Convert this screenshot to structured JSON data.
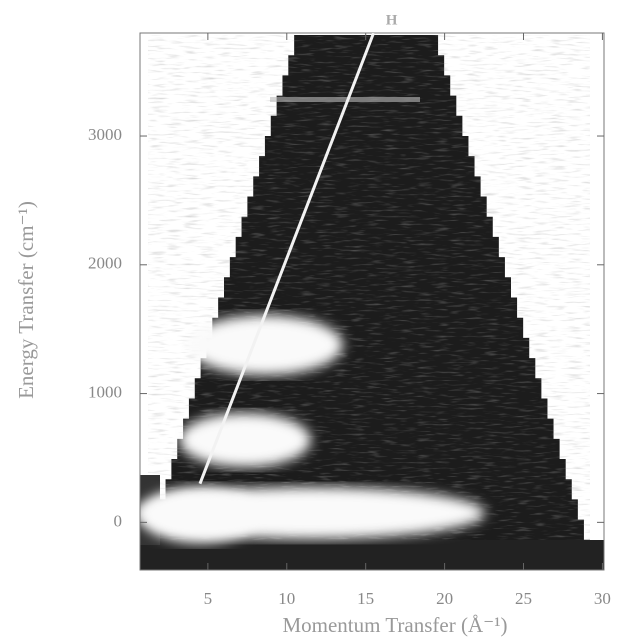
{
  "chart_data": {
    "type": "line",
    "x_label": "Momentum Transfer (Å⁻¹)",
    "y_label": "Energy Transfer (cm⁻¹)",
    "line_label": "H",
    "x": [
      4.5,
      15.5
    ],
    "series": [
      {
        "color": "#f2f2f2",
        "values": [
          300,
          3800
        ]
      }
    ],
    "xlim": [
      0.7,
      30.1
    ],
    "xticks": [
      5,
      10,
      15,
      20,
      25,
      30
    ],
    "ylim": [
      -370,
      3800
    ],
    "yticks": [
      0,
      1000,
      2000,
      3000
    ],
    "grid": false
  }
}
